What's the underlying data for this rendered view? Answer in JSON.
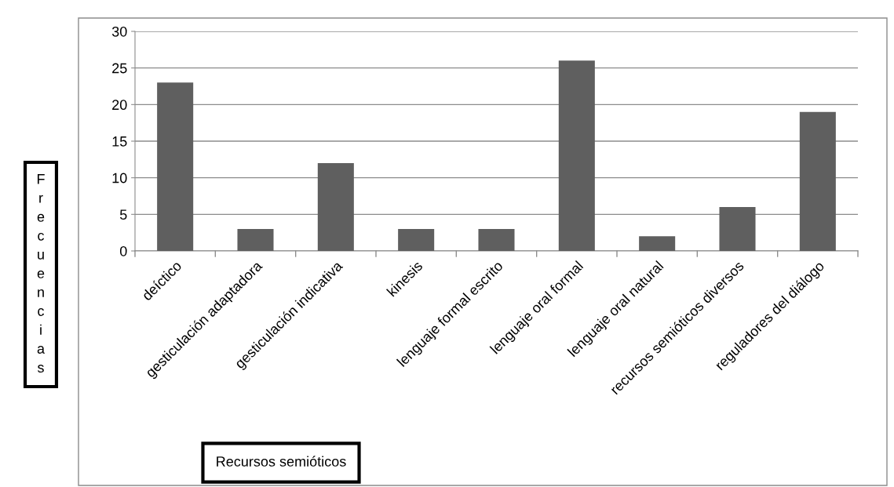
{
  "chart_data": {
    "type": "bar",
    "categories": [
      "deíctico",
      "gesticulación adaptadora",
      "gesticulación indicativa",
      "kinesis",
      "lenguaje formal escrito",
      "lenguaje oral formal",
      "lenguaje oral natural",
      "recursos semióticos diversos",
      "reguladores del diálogo"
    ],
    "values": [
      23,
      3,
      12,
      3,
      3,
      26,
      2,
      6,
      19
    ],
    "color": "#5f5f5f",
    "xlabel": "Recursos semióticos",
    "ylabel": "Frecuencias",
    "ylim": [
      0,
      30
    ],
    "yticks": [
      0,
      5,
      10,
      15,
      20,
      25,
      30
    ],
    "grid": "y",
    "legend": false
  }
}
